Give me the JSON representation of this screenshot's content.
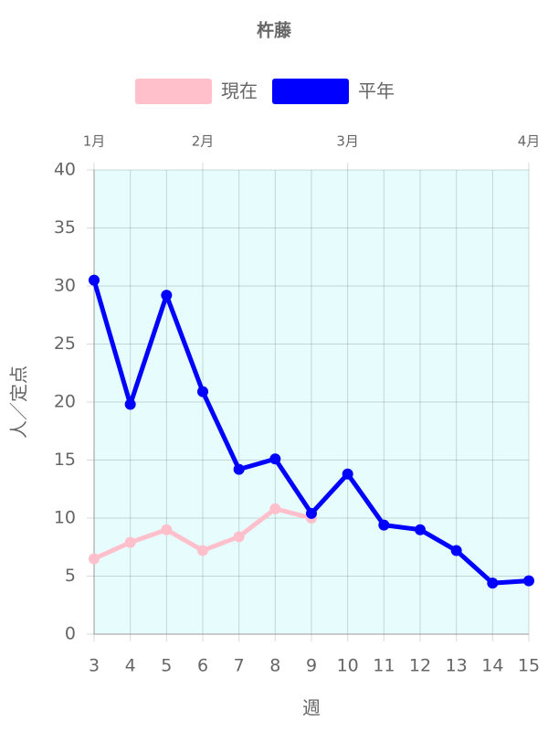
{
  "chart_data": {
    "type": "line",
    "title": "杵藤",
    "x": [
      3,
      4,
      5,
      6,
      7,
      8,
      9,
      10,
      11,
      12,
      13,
      14,
      15
    ],
    "series": [
      {
        "name": "現在",
        "color": "#ffc0cb",
        "values": [
          6.5,
          7.9,
          9.0,
          7.2,
          8.4,
          10.8,
          10.0,
          null,
          null,
          null,
          null,
          null,
          null
        ]
      },
      {
        "name": "平年",
        "color": "#0000ff",
        "values": [
          30.5,
          19.8,
          29.2,
          20.9,
          14.2,
          15.1,
          10.4,
          13.8,
          9.4,
          9.0,
          7.2,
          4.4,
          4.6
        ]
      }
    ],
    "xlim": [
      3,
      15
    ],
    "xticks": [
      3,
      4,
      5,
      6,
      7,
      8,
      9,
      10,
      11,
      12,
      13,
      14,
      15
    ],
    "x2ticks": [
      {
        "value": 3,
        "label": "1月"
      },
      {
        "value": 6,
        "label": "2月"
      },
      {
        "value": 10,
        "label": "3月"
      },
      {
        "value": 15,
        "label": "4月"
      }
    ],
    "ylim": [
      0,
      40
    ],
    "yticks": [
      0,
      5,
      10,
      15,
      20,
      25,
      30,
      35,
      40
    ],
    "xlabel": "週",
    "ylabel": "人／定点",
    "grid": true,
    "legend": "top",
    "background": "#e6fcfd"
  }
}
